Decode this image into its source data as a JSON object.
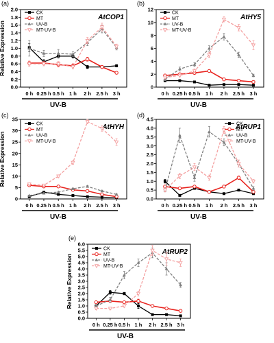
{
  "figure": {
    "x_categories": [
      "0 h",
      "0.25 h",
      "0.5 h",
      "1 h",
      "2 h",
      "2.5 h",
      "3 h"
    ],
    "treatment_label": "UV-B",
    "colors": {
      "CK": "#000000",
      "MT": "#e8231e",
      "UV-B": "#7f7f7f",
      "MT-UV-B": "#f4a0a0"
    }
  },
  "chart_data": [
    {
      "type": "line",
      "panel": "(a)",
      "title": "AtCOP1",
      "ylabel": "Relative Expression",
      "xlabel": "UV-B",
      "ylim": [
        0,
        2.0
      ],
      "yticks": [
        "0.0",
        "0.2",
        "0.4",
        "0.6",
        "0.8",
        "1.0",
        "1.2",
        "1.4",
        "1.6",
        "1.8",
        "2.0"
      ],
      "legend": "top-left",
      "legend_entries": [
        "CK",
        "MT",
        "UV-B",
        "MT-UV-B"
      ],
      "categories": [
        "0 h",
        "0.25 h",
        "0.5 h",
        "1 h",
        "2 h",
        "2.5 h",
        "3 h"
      ],
      "series": [
        {
          "name": "CK",
          "values": [
            1.02,
            0.65,
            0.8,
            0.8,
            0.52,
            0.52,
            0.55
          ],
          "errors": [
            0.1,
            0.06,
            0.05,
            0.05,
            0.04,
            0.03,
            0.03
          ]
        },
        {
          "name": "MT",
          "values": [
            0.62,
            0.62,
            0.58,
            0.55,
            0.72,
            0.52,
            0.37
          ],
          "errors": [
            0.05,
            0.04,
            0.06,
            0.05,
            0.05,
            0.04,
            0.03
          ]
        },
        {
          "name": "UV-B",
          "values": [
            1.0,
            0.87,
            0.87,
            0.85,
            1.15,
            1.5,
            1.02
          ],
          "errors": [
            0.2,
            0.08,
            0.1,
            0.06,
            0.08,
            0.1,
            0.06
          ]
        },
        {
          "name": "MT-UV-B",
          "values": [
            0.6,
            0.6,
            0.6,
            0.52,
            1.2,
            1.55,
            1.05
          ],
          "errors": [
            0.06,
            0.05,
            0.06,
            0.05,
            0.08,
            0.1,
            0.06
          ]
        }
      ]
    },
    {
      "type": "line",
      "panel": "(b)",
      "title": "AtHY5",
      "ylabel": "",
      "xlabel": "UV-B",
      "ylim": [
        0,
        12
      ],
      "yticks": [
        "0",
        "2",
        "4",
        "6",
        "8",
        "10",
        "12"
      ],
      "legend": "top-left",
      "legend_entries": [
        "CK",
        "MT",
        "UV-B",
        "MT-UV-B"
      ],
      "categories": [
        "0 h",
        "0.25 h",
        "0.5 h",
        "1 h",
        "2 h",
        "2.5 h",
        "3 h"
      ],
      "series": [
        {
          "name": "CK",
          "values": [
            1.0,
            1.0,
            0.8,
            0.3,
            0.4,
            0.4,
            0.3
          ],
          "errors": [
            0.1,
            0.1,
            0.08,
            0.05,
            0.05,
            0.05,
            0.05
          ]
        },
        {
          "name": "MT",
          "values": [
            1.8,
            2.0,
            2.2,
            2.5,
            1.2,
            1.0,
            0.8
          ],
          "errors": [
            0.15,
            0.15,
            0.2,
            0.15,
            0.1,
            0.1,
            0.1
          ]
        },
        {
          "name": "UV-B",
          "values": [
            1.2,
            2.8,
            3.5,
            6.0,
            7.8,
            5.0,
            1.8
          ],
          "errors": [
            0.2,
            0.3,
            0.3,
            0.4,
            0.5,
            0.4,
            0.2
          ]
        },
        {
          "name": "MT-UV-B",
          "values": [
            1.5,
            1.8,
            2.5,
            5.0,
            10.5,
            9.2,
            6.5
          ],
          "errors": [
            0.2,
            0.2,
            0.3,
            0.4,
            0.4,
            0.5,
            0.7
          ]
        }
      ]
    },
    {
      "type": "line",
      "panel": "(c)",
      "title": "AtHYH",
      "ylabel": "Relative Expression",
      "xlabel": "UV-B",
      "ylim": [
        0,
        35
      ],
      "yticks": [
        "0",
        "5",
        "10",
        "15",
        "20",
        "25",
        "30",
        "35"
      ],
      "legend": "top-left",
      "legend_entries": [
        "CK",
        "MT",
        "UV-B",
        "MT-UV-B"
      ],
      "categories": [
        "0 h",
        "0.25 h",
        "0.5 h",
        "1 h",
        "2 h",
        "2.5 h",
        "3 h"
      ],
      "series": [
        {
          "name": "CK",
          "values": [
            1.0,
            3.0,
            2.0,
            1.5,
            1.0,
            0.8,
            0.5
          ],
          "errors": [
            0.2,
            0.3,
            0.2,
            0.2,
            0.1,
            0.1,
            0.1
          ]
        },
        {
          "name": "MT",
          "values": [
            6.0,
            5.5,
            5.5,
            4.0,
            3.5,
            2.0,
            1.0
          ],
          "errors": [
            0.4,
            0.3,
            0.3,
            0.3,
            0.3,
            0.2,
            0.1
          ]
        },
        {
          "name": "UV-B",
          "values": [
            1.5,
            2.5,
            3.0,
            4.5,
            5.5,
            3.5,
            2.0
          ],
          "errors": [
            0.2,
            0.3,
            0.3,
            0.3,
            0.4,
            0.3,
            0.2
          ]
        },
        {
          "name": "MT-UV-B",
          "values": [
            6.5,
            6.0,
            10.0,
            16.0,
            34.0,
            31.0,
            25.0
          ],
          "errors": [
            0.5,
            0.5,
            0.6,
            0.8,
            1.0,
            1.2,
            1.5
          ]
        }
      ]
    },
    {
      "type": "line",
      "panel": "(d)",
      "title": "AtRUP1",
      "ylabel": "",
      "xlabel": "UV-B",
      "ylim": [
        0,
        4.5
      ],
      "yticks": [
        "0.0",
        "0.5",
        "1.0",
        "1.5",
        "2.0",
        "2.5",
        "3.0",
        "3.5",
        "4.0",
        "4.5"
      ],
      "legend": "top-right",
      "legend_entries": [
        "CK",
        "MT",
        "UV-B",
        "MT-UV-B"
      ],
      "categories": [
        "0 h",
        "0.25 h",
        "0.5 h",
        "1 h",
        "2 h",
        "2.5 h",
        "3 h"
      ],
      "series": [
        {
          "name": "CK",
          "values": [
            1.0,
            0.2,
            0.6,
            0.4,
            0.3,
            0.5,
            0.3
          ],
          "errors": [
            0.1,
            0.05,
            0.05,
            0.05,
            0.05,
            0.05,
            0.05
          ]
        },
        {
          "name": "MT",
          "values": [
            0.7,
            0.6,
            0.7,
            0.4,
            0.7,
            1.2,
            0.4
          ],
          "errors": [
            0.08,
            0.06,
            0.06,
            0.05,
            0.08,
            0.1,
            0.05
          ]
        },
        {
          "name": "UV-B",
          "values": [
            0.5,
            3.6,
            1.2,
            3.8,
            3.2,
            2.0,
            0.6
          ],
          "errors": [
            0.1,
            0.4,
            0.2,
            0.3,
            0.2,
            0.2,
            0.1
          ]
        },
        {
          "name": "MT-UV-B",
          "values": [
            0.5,
            1.3,
            1.8,
            1.2,
            3.9,
            2.0,
            1.0
          ],
          "errors": [
            0.1,
            0.15,
            0.2,
            0.15,
            0.2,
            0.2,
            0.1
          ]
        }
      ]
    },
    {
      "type": "line",
      "panel": "(e)",
      "title": "AtRUP2",
      "ylabel": "Relative Expression",
      "xlabel": "UV-B",
      "ylim": [
        0,
        6.0
      ],
      "yticks": [
        "0.0",
        "0.5",
        "1.0",
        "1.5",
        "2.0",
        "2.5",
        "3.0",
        "3.5",
        "4.0",
        "4.5",
        "5.0",
        "5.5",
        "6.0"
      ],
      "legend": "top-left",
      "legend_entries": [
        "CK",
        "MT",
        "UV-B",
        "MT-UV-B"
      ],
      "categories": [
        "0 h",
        "0.25 h",
        "0.5 h",
        "1 h",
        "2 h",
        "2.5 h",
        "3 h"
      ],
      "series": [
        {
          "name": "CK",
          "values": [
            1.0,
            2.1,
            2.0,
            1.0,
            0.3,
            0.3,
            0.2
          ],
          "errors": [
            0.1,
            0.15,
            0.1,
            0.2,
            0.05,
            0.05,
            0.05
          ]
        },
        {
          "name": "MT",
          "values": [
            1.3,
            1.4,
            1.3,
            1.4,
            1.0,
            0.8,
            0.6
          ],
          "errors": [
            0.1,
            0.1,
            0.1,
            0.15,
            0.1,
            0.08,
            0.06
          ]
        },
        {
          "name": "UV-B",
          "values": [
            1.0,
            1.5,
            3.5,
            4.5,
            5.3,
            4.0,
            2.7
          ],
          "errors": [
            0.1,
            0.2,
            0.3,
            0.3,
            0.4,
            0.5,
            0.2
          ]
        },
        {
          "name": "MT-UV-B",
          "values": [
            0.8,
            0.8,
            1.0,
            2.0,
            5.5,
            4.8,
            4.5
          ],
          "errors": [
            0.1,
            0.1,
            0.1,
            0.2,
            0.4,
            0.5,
            0.3
          ]
        }
      ]
    }
  ]
}
